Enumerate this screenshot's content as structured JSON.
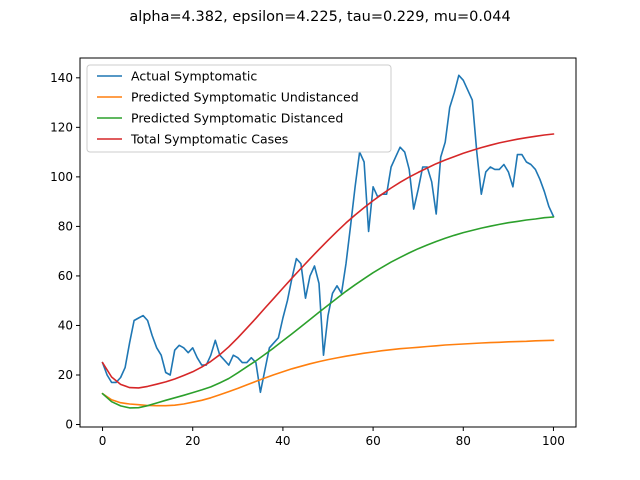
{
  "chart_data": {
    "type": "line",
    "title": "alpha=4.382, epsilon=4.225, tau=0.229, mu=0.044",
    "xlabel": "",
    "ylabel": "",
    "xlim": [
      -5,
      105
    ],
    "ylim": [
      -1,
      148
    ],
    "xticks": [
      0,
      20,
      40,
      60,
      80,
      100
    ],
    "yticks": [
      0,
      20,
      40,
      60,
      80,
      100,
      120,
      140
    ],
    "grid": false,
    "legend_position": "top-left",
    "series": [
      {
        "name": "Actual Symptomatic",
        "color": "#1f77b4",
        "x": [
          0,
          1,
          2,
          3,
          4,
          5,
          6,
          7,
          8,
          9,
          10,
          11,
          12,
          13,
          14,
          15,
          16,
          17,
          18,
          19,
          20,
          21,
          22,
          23,
          24,
          25,
          26,
          27,
          28,
          29,
          30,
          31,
          32,
          33,
          34,
          35,
          36,
          37,
          38,
          39,
          40,
          41,
          42,
          43,
          44,
          45,
          46,
          47,
          48,
          49,
          50,
          51,
          52,
          53,
          54,
          55,
          56,
          57,
          58,
          59,
          60,
          61,
          62,
          63,
          64,
          65,
          66,
          67,
          68,
          69,
          70,
          71,
          72,
          73,
          74,
          75,
          76,
          77,
          78,
          79,
          80,
          81,
          82,
          83,
          84,
          85,
          86,
          87,
          88,
          89,
          90,
          91,
          92,
          93,
          94,
          95,
          96,
          97,
          98,
          99,
          100
        ],
        "values": [
          25,
          20,
          17,
          17,
          19,
          23,
          33,
          42,
          43,
          44,
          42,
          36,
          31,
          28,
          21,
          20,
          30,
          32,
          31,
          29,
          31,
          27,
          24,
          24,
          28,
          34,
          28,
          26,
          24,
          28,
          27,
          25,
          25,
          27,
          25,
          13,
          22,
          31,
          33,
          35,
          43,
          50,
          59,
          67,
          65,
          51,
          60,
          64,
          57,
          28,
          44,
          53,
          56,
          53,
          65,
          80,
          96,
          110,
          106,
          78,
          96,
          92,
          93,
          93,
          104,
          108,
          112,
          110,
          103,
          87,
          95,
          104,
          104,
          98,
          85,
          108,
          114,
          128,
          134,
          141,
          139,
          135,
          131,
          110,
          93,
          102,
          104,
          103,
          103,
          105,
          102,
          96,
          109,
          109,
          106,
          105,
          103,
          99,
          94,
          88,
          84
        ]
      },
      {
        "name": "Predicted Symptomatic Undistanced",
        "color": "#ff7f0e",
        "x": [
          0,
          2,
          4,
          6,
          8,
          10,
          12,
          14,
          16,
          18,
          20,
          22,
          24,
          26,
          28,
          30,
          32,
          34,
          36,
          38,
          40,
          42,
          44,
          46,
          48,
          50,
          52,
          54,
          56,
          58,
          60,
          62,
          64,
          66,
          68,
          70,
          72,
          74,
          76,
          78,
          80,
          82,
          84,
          86,
          88,
          90,
          92,
          94,
          96,
          98,
          100
        ],
        "values": [
          12.5,
          10.0,
          8.8,
          8.3,
          8.0,
          7.7,
          7.6,
          7.6,
          7.8,
          8.3,
          9.0,
          9.8,
          10.8,
          12.0,
          13.3,
          14.6,
          16.0,
          17.4,
          18.8,
          20.1,
          21.3,
          22.5,
          23.5,
          24.5,
          25.4,
          26.2,
          26.9,
          27.6,
          28.2,
          28.8,
          29.3,
          29.8,
          30.2,
          30.6,
          30.9,
          31.2,
          31.5,
          31.8,
          32.1,
          32.3,
          32.5,
          32.7,
          32.9,
          33.1,
          33.2,
          33.4,
          33.5,
          33.6,
          33.8,
          33.9,
          34.0
        ]
      },
      {
        "name": "Predicted Symptomatic Distanced",
        "color": "#2ca02c",
        "x": [
          0,
          2,
          4,
          6,
          8,
          10,
          12,
          14,
          16,
          18,
          20,
          22,
          24,
          26,
          28,
          30,
          32,
          34,
          36,
          38,
          40,
          42,
          44,
          46,
          48,
          50,
          52,
          54,
          56,
          58,
          60,
          62,
          64,
          66,
          68,
          70,
          72,
          74,
          76,
          78,
          80,
          82,
          84,
          86,
          88,
          90,
          92,
          94,
          96,
          98,
          100
        ],
        "values": [
          12.5,
          9.2,
          7.5,
          6.7,
          6.8,
          7.6,
          8.7,
          9.8,
          10.8,
          11.8,
          12.9,
          14.0,
          15.2,
          16.8,
          18.6,
          20.9,
          23.3,
          25.7,
          28.3,
          31.0,
          33.8,
          36.6,
          39.5,
          42.4,
          45.3,
          48.2,
          51.0,
          53.8,
          56.4,
          58.9,
          61.3,
          63.5,
          65.6,
          67.5,
          69.3,
          71.0,
          72.5,
          73.9,
          75.2,
          76.4,
          77.5,
          78.4,
          79.3,
          80.1,
          80.8,
          81.5,
          82.0,
          82.6,
          83.0,
          83.5,
          83.8
        ]
      },
      {
        "name": "Total Symptomatic Cases",
        "color": "#d62728",
        "x": [
          0,
          2,
          4,
          6,
          8,
          10,
          12,
          14,
          16,
          18,
          20,
          22,
          24,
          26,
          28,
          30,
          32,
          34,
          36,
          38,
          40,
          42,
          44,
          46,
          48,
          50,
          52,
          54,
          56,
          58,
          60,
          62,
          64,
          66,
          68,
          70,
          72,
          74,
          76,
          78,
          80,
          82,
          84,
          86,
          88,
          90,
          92,
          94,
          96,
          98,
          100
        ],
        "values": [
          25,
          19.2,
          16.2,
          14.9,
          14.8,
          15.4,
          16.3,
          17.2,
          18.4,
          19.8,
          21.3,
          23.2,
          25.5,
          28.2,
          31.4,
          35.0,
          38.9,
          42.9,
          47.0,
          51.0,
          55.1,
          59.1,
          63.0,
          66.9,
          70.7,
          74.4,
          78.0,
          81.4,
          84.6,
          87.6,
          90.4,
          93.0,
          95.5,
          97.8,
          99.9,
          101.8,
          103.6,
          105.3,
          106.8,
          108.2,
          109.5,
          110.7,
          111.8,
          112.8,
          113.7,
          114.5,
          115.2,
          115.8,
          116.4,
          116.9,
          117.3
        ]
      }
    ]
  }
}
